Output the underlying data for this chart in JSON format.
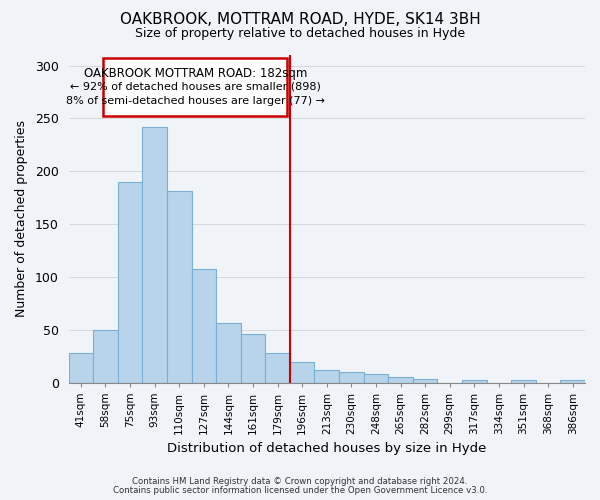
{
  "title": "OAKBROOK, MOTTRAM ROAD, HYDE, SK14 3BH",
  "subtitle": "Size of property relative to detached houses in Hyde",
  "xlabel": "Distribution of detached houses by size in Hyde",
  "ylabel": "Number of detached properties",
  "footnote1": "Contains HM Land Registry data © Crown copyright and database right 2024.",
  "footnote2": "Contains public sector information licensed under the Open Government Licence v3.0.",
  "bar_labels": [
    "41sqm",
    "58sqm",
    "75sqm",
    "93sqm",
    "110sqm",
    "127sqm",
    "144sqm",
    "161sqm",
    "179sqm",
    "196sqm",
    "213sqm",
    "230sqm",
    "248sqm",
    "265sqm",
    "282sqm",
    "299sqm",
    "317sqm",
    "334sqm",
    "351sqm",
    "368sqm",
    "386sqm"
  ],
  "bar_values": [
    28,
    50,
    190,
    242,
    181,
    107,
    56,
    46,
    28,
    19,
    12,
    10,
    8,
    5,
    3,
    0,
    2,
    0,
    2,
    0,
    2
  ],
  "bar_color": "#b8d4ea",
  "bar_edge_color": "#7aafd4",
  "vline_position": 8,
  "vline_color": "#cc0000",
  "annotation_title": "OAKBROOK MOTTRAM ROAD: 182sqm",
  "annotation_line1": "← 92% of detached houses are smaller (898)",
  "annotation_line2": "8% of semi-detached houses are larger (77) →",
  "annotation_box_color": "#ffffff",
  "annotation_box_edge": "#cc0000",
  "ylim": [
    0,
    310
  ],
  "yticks": [
    0,
    50,
    100,
    150,
    200,
    250,
    300
  ],
  "background_color": "#f0f4f8"
}
